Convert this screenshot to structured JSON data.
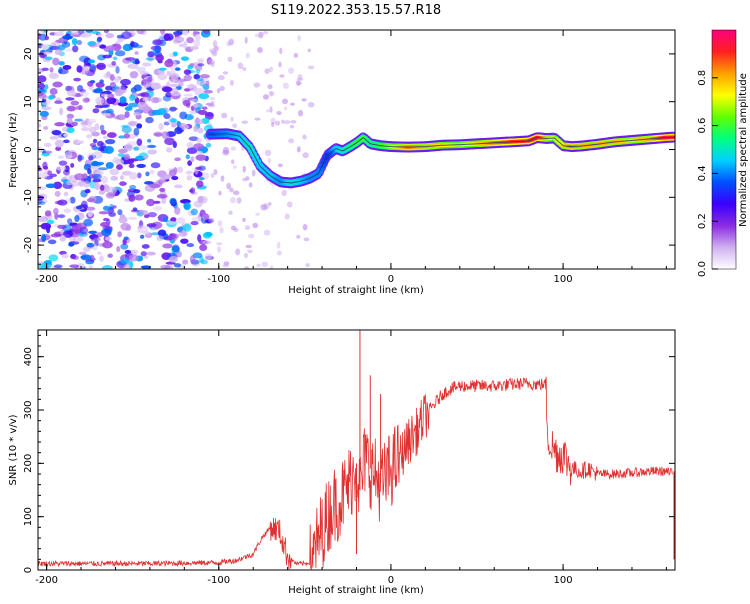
{
  "figure": {
    "title": "S119.2022.353.15.57.R18"
  },
  "colors": {
    "trace": "#e03030",
    "axis": "#000000",
    "ridge": "#1a3a7a"
  },
  "chart_data": [
    {
      "type": "heatmap",
      "xlabel": "Height of straight line (km)",
      "ylabel": "Frequency (Hz)",
      "xlim": [
        -205,
        165
      ],
      "ylim": [
        -25,
        25
      ],
      "x_ticks": [
        -200,
        -100,
        0,
        100
      ],
      "x_tick_labels": [
        "-200",
        "-100",
        "0",
        "100"
      ],
      "y_ticks": [
        -20,
        -10,
        0,
        10,
        20
      ],
      "y_tick_labels": [
        "-20",
        "-10",
        "0",
        "10",
        "20"
      ],
      "colorbar": {
        "label": "Normalized spectral amplitude",
        "range": [
          0,
          1
        ],
        "ticks": [
          0.0,
          0.2,
          0.4,
          0.6,
          0.8
        ],
        "tick_labels": [
          "0.0",
          "0.2",
          "0.4",
          "0.6",
          "0.8"
        ],
        "colormap": [
          "#ffffff",
          "#d0b0f0",
          "#8a2be2",
          "#3a00ff",
          "#0050ff",
          "#00d0ff",
          "#00ff80",
          "#60ff00",
          "#ffff00",
          "#ffa000",
          "#ff2020",
          "#ff0080"
        ]
      },
      "ridge": {
        "x": [
          -105,
          -95,
          -88,
          -82,
          -76,
          -70,
          -64,
          -58,
          -52,
          -47,
          -42,
          -37,
          -32,
          -28,
          -24,
          -20,
          -16,
          -12,
          -6,
          0,
          10,
          20,
          30,
          40,
          50,
          60,
          70,
          80,
          85,
          90,
          95,
          100,
          105,
          110,
          120,
          130,
          140,
          150,
          160,
          165
        ],
        "y": [
          3.2,
          3.3,
          2.8,
          0.5,
          -3.5,
          -5.5,
          -6.8,
          -7.0,
          -6.6,
          -6.0,
          -5.0,
          -1.2,
          0.2,
          -0.3,
          0.5,
          1.4,
          2.5,
          1.2,
          0.8,
          0.6,
          0.5,
          0.6,
          0.9,
          1.0,
          1.2,
          1.4,
          1.6,
          1.8,
          2.5,
          2.3,
          2.4,
          0.8,
          0.6,
          0.7,
          1.1,
          1.6,
          1.9,
          2.2,
          2.5,
          2.6
        ],
        "amplitude": [
          0.35,
          0.4,
          0.45,
          0.5,
          0.45,
          0.45,
          0.4,
          0.5,
          0.45,
          0.4,
          0.4,
          0.3,
          0.45,
          0.5,
          0.55,
          0.6,
          0.6,
          0.55,
          0.6,
          0.7,
          0.85,
          0.8,
          0.75,
          0.7,
          0.75,
          0.85,
          0.9,
          0.9,
          0.95,
          0.8,
          0.7,
          0.75,
          0.85,
          0.8,
          0.8,
          0.8,
          0.75,
          0.8,
          0.95,
          0.9
        ]
      }
    },
    {
      "type": "line",
      "xlabel": "Height of straight line (km)",
      "ylabel": "SNR (10 * v/v)",
      "xlim": [
        -205,
        165
      ],
      "ylim": [
        0,
        450
      ],
      "x_ticks": [
        -200,
        -100,
        0,
        100
      ],
      "x_tick_labels": [
        "-200",
        "-100",
        "0",
        "100"
      ],
      "y_ticks": [
        0,
        100,
        200,
        300,
        400
      ],
      "y_tick_labels": [
        "0",
        "100",
        "200",
        "300",
        "400"
      ],
      "series": [
        {
          "x": [
            -205,
            -180,
            -160,
            -140,
            -120,
            -100,
            -90,
            -80,
            -75,
            -70,
            -65,
            -60,
            -55,
            -50,
            -46,
            -42,
            -38,
            -34,
            -30,
            -26,
            -22,
            -20,
            -18,
            -15,
            -12,
            -8,
            -5,
            0,
            5,
            10,
            15,
            20,
            25,
            30,
            35,
            40,
            50,
            60,
            70,
            80,
            85,
            90,
            91,
            93,
            95,
            98,
            100,
            103,
            106,
            110,
            115,
            120,
            130,
            140,
            150,
            160,
            164,
            165
          ],
          "y": [
            12,
            12,
            12,
            12,
            13,
            14,
            18,
            30,
            60,
            80,
            75,
            25,
            12,
            12,
            15,
            60,
            90,
            120,
            130,
            150,
            180,
            200,
            150,
            210,
            190,
            170,
            160,
            190,
            210,
            240,
            260,
            290,
            310,
            330,
            340,
            345,
            345,
            345,
            348,
            350,
            348,
            348,
            255,
            235,
            225,
            215,
            220,
            200,
            190,
            185,
            190,
            180,
            180,
            182,
            185,
            185,
            180,
            20
          ],
          "spikes": [
            {
              "x": -18,
              "y": 450
            },
            {
              "x": -24,
              "y": 175
            },
            {
              "x": -12,
              "y": 365
            },
            {
              "x": -6,
              "y": 330
            },
            {
              "x": -20,
              "y": 30
            }
          ]
        }
      ]
    }
  ]
}
